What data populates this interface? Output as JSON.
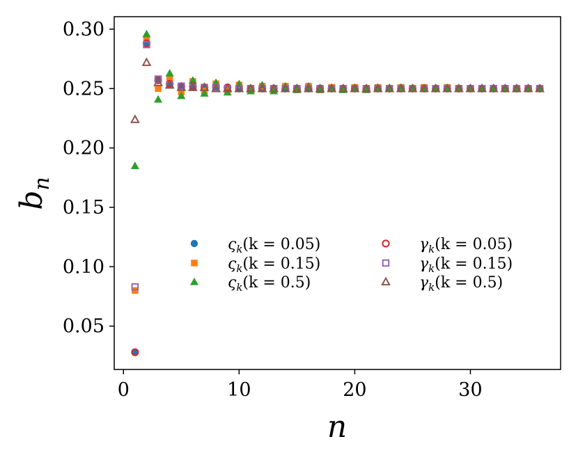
{
  "chart_data": {
    "type": "scatter",
    "xlabel": "n",
    "ylabel_base": "b",
    "ylabel_sub": "n",
    "xlim": [
      -0.8,
      37.8
    ],
    "ylim": [
      0.0135,
      0.3105
    ],
    "x_ticks": [
      0,
      10,
      20,
      30
    ],
    "x_tick_labels": [
      "0",
      "10",
      "20",
      "30"
    ],
    "y_ticks": [
      0.05,
      0.1,
      0.15,
      0.2,
      0.25,
      0.3
    ],
    "y_tick_labels": [
      "0.05",
      "0.10",
      "0.15",
      "0.20",
      "0.25",
      "0.30"
    ],
    "grid": false,
    "legend_position": "center-right",
    "x": [
      1,
      2,
      3,
      4,
      5,
      6,
      7,
      8,
      9,
      10,
      11,
      12,
      13,
      14,
      15,
      16,
      17,
      18,
      19,
      20,
      21,
      22,
      23,
      24,
      25,
      26,
      27,
      28,
      29,
      30,
      31,
      32,
      33,
      34,
      35,
      36
    ],
    "series": [
      {
        "name": "ςₖ(k = 0.05)",
        "legend_sym": "ς",
        "legend_args": "(k = 0.05)",
        "marker": "circle-filled",
        "color": "#1f77b4",
        "values": [
          0.028,
          0.288,
          0.257,
          0.254,
          0.252,
          0.252,
          0.251,
          0.251,
          0.251,
          0.25,
          0.25,
          0.25,
          0.25,
          0.25,
          0.25,
          0.25,
          0.25,
          0.25,
          0.25,
          0.25,
          0.25,
          0.25,
          0.25,
          0.25,
          0.25,
          0.25,
          0.25,
          0.25,
          0.25,
          0.25,
          0.25,
          0.25,
          0.25,
          0.25,
          0.25,
          0.25
        ]
      },
      {
        "name": "ςₖ(k = 0.15)",
        "legend_sym": "ς",
        "legend_args": "(k = 0.15)",
        "marker": "square-filled",
        "color": "#ff7f0e",
        "values": [
          0.08,
          0.292,
          0.25,
          0.258,
          0.247,
          0.256,
          0.248,
          0.254,
          0.249,
          0.253,
          0.249,
          0.252,
          0.249,
          0.252,
          0.249,
          0.252,
          0.249,
          0.251,
          0.25,
          0.251,
          0.25,
          0.251,
          0.25,
          0.251,
          0.25,
          0.251,
          0.25,
          0.251,
          0.25,
          0.25,
          0.25,
          0.25,
          0.25,
          0.25,
          0.25,
          0.25
        ]
      },
      {
        "name": "ςₖ(k = 0.5)",
        "legend_sym": "ς",
        "legend_args": "(k = 0.5)",
        "marker": "triangle-filled",
        "color": "#2ca02c",
        "values": [
          0.185,
          0.296,
          0.241,
          0.263,
          0.244,
          0.257,
          0.246,
          0.255,
          0.247,
          0.254,
          0.248,
          0.253,
          0.248,
          0.252,
          0.249,
          0.252,
          0.249,
          0.251,
          0.249,
          0.251,
          0.249,
          0.251,
          0.25,
          0.251,
          0.25,
          0.25,
          0.25,
          0.25,
          0.25,
          0.25,
          0.25,
          0.25,
          0.25,
          0.25,
          0.25,
          0.25
        ]
      },
      {
        "name": "γₖ(k = 0.05)",
        "legend_sym": "γ",
        "legend_args": "(k = 0.05)",
        "marker": "circle-open",
        "color": "#d62728",
        "values": [
          0.028,
          0.288,
          0.257,
          0.254,
          0.252,
          0.252,
          0.251,
          0.251,
          0.251,
          0.25,
          0.25,
          0.25,
          0.25,
          0.25,
          0.25,
          0.25,
          0.25,
          0.25,
          0.25,
          0.25,
          0.25,
          0.25,
          0.25,
          0.25,
          0.25,
          0.25,
          0.25,
          0.25,
          0.25,
          0.25,
          0.25,
          0.25,
          0.25,
          0.25,
          0.25,
          0.25
        ]
      },
      {
        "name": "γₖ(k = 0.15)",
        "legend_sym": "γ",
        "legend_args": "(k = 0.15)",
        "marker": "square-open",
        "color": "#9467bd",
        "values": [
          0.083,
          0.287,
          0.258,
          0.253,
          0.252,
          0.251,
          0.251,
          0.251,
          0.25,
          0.25,
          0.25,
          0.25,
          0.25,
          0.25,
          0.25,
          0.25,
          0.25,
          0.25,
          0.25,
          0.25,
          0.25,
          0.25,
          0.25,
          0.25,
          0.25,
          0.25,
          0.25,
          0.25,
          0.25,
          0.25,
          0.25,
          0.25,
          0.25,
          0.25,
          0.25,
          0.25
        ]
      },
      {
        "name": "γₖ(k = 0.5)",
        "legend_sym": "γ",
        "legend_args": "(k = 0.5)",
        "marker": "triangle-open",
        "color": "#8c564b",
        "values": [
          0.224,
          0.272,
          0.255,
          0.253,
          0.251,
          0.251,
          0.251,
          0.25,
          0.25,
          0.25,
          0.25,
          0.25,
          0.25,
          0.25,
          0.25,
          0.25,
          0.25,
          0.25,
          0.25,
          0.25,
          0.25,
          0.25,
          0.25,
          0.25,
          0.25,
          0.25,
          0.25,
          0.25,
          0.25,
          0.25,
          0.25,
          0.25,
          0.25,
          0.25,
          0.25,
          0.25
        ]
      }
    ]
  }
}
